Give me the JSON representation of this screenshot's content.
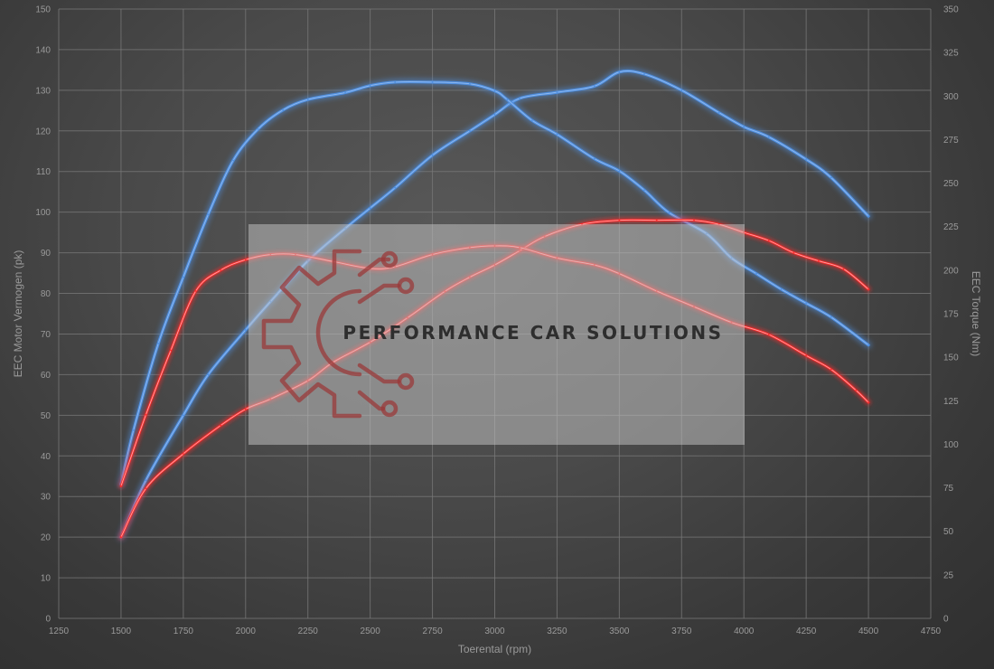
{
  "chart_data": {
    "type": "line",
    "xlabel": "Toerental (rpm)",
    "ylabel": "EEC Motor Vermogen (pk)",
    "y2label": "EEC Torque (Nm)",
    "xlim": [
      1250,
      4750
    ],
    "ylim": [
      0,
      150
    ],
    "y2lim": [
      0,
      350
    ],
    "x_ticks": [
      1250,
      1500,
      1750,
      2000,
      2250,
      2500,
      2750,
      3000,
      3250,
      3500,
      3750,
      4000,
      4250,
      4500,
      4750
    ],
    "y_ticks": [
      0,
      10,
      20,
      30,
      40,
      50,
      60,
      70,
      80,
      90,
      100,
      110,
      120,
      130,
      140,
      150
    ],
    "y2_ticks": [
      0,
      25,
      50,
      75,
      100,
      125,
      150,
      175,
      200,
      225,
      250,
      275,
      300,
      325,
      350
    ],
    "grid": true,
    "colors": {
      "tuned": "#4f8fe0",
      "stock": "#ff2a2a"
    },
    "series": [
      {
        "axis": "left",
        "color": "tuned",
        "x": [
          1500,
          1600,
          1750,
          1850,
          2000,
          2100,
          2250,
          2400,
          2500,
          2600,
          2750,
          2900,
          3000,
          3100,
          3250,
          3400,
          3500,
          3600,
          3750,
          3900,
          4000,
          4100,
          4250,
          4350,
          4500
        ],
        "y": [
          20,
          34,
          50,
          60,
          71,
          78,
          88,
          96,
          101,
          106,
          114,
          120,
          124,
          128,
          129.5,
          131,
          134.5,
          134,
          130,
          124.5,
          121,
          118.5,
          113,
          108.5,
          99
        ]
      },
      {
        "axis": "right",
        "color": "tuned",
        "x": [
          1500,
          1550,
          1650,
          1750,
          1850,
          1950,
          2050,
          2150,
          2250,
          2400,
          2500,
          2600,
          2750,
          2900,
          3000,
          3050,
          3150,
          3250,
          3400,
          3500,
          3600,
          3700,
          3850,
          3950,
          4050,
          4150,
          4250,
          4350,
          4500
        ],
        "y": [
          77,
          108,
          158,
          196,
          232,
          263,
          281,
          292,
          298,
          302,
          306,
          308,
          308,
          307,
          303,
          298,
          286,
          278,
          264,
          257,
          246,
          233,
          221,
          207,
          198,
          189,
          181,
          173,
          157
        ]
      },
      {
        "axis": "left",
        "color": "stock",
        "x": [
          1500,
          1600,
          1750,
          1900,
          2000,
          2100,
          2250,
          2350,
          2500,
          2650,
          2800,
          2900,
          3000,
          3100,
          3200,
          3350,
          3500,
          3650,
          3800,
          3900,
          4000,
          4100,
          4200,
          4300,
          4400,
          4500
        ],
        "y": [
          20,
          32,
          40.5,
          47.5,
          51.5,
          54,
          58.5,
          63,
          68,
          74,
          80.5,
          84,
          87,
          90.5,
          94,
          97,
          98,
          98,
          98,
          97,
          95,
          93,
          90,
          88,
          86,
          81
        ]
      },
      {
        "axis": "right",
        "color": "stock",
        "x": [
          1500,
          1600,
          1700,
          1800,
          1900,
          2000,
          2100,
          2200,
          2350,
          2500,
          2600,
          2750,
          2900,
          3000,
          3100,
          3250,
          3400,
          3500,
          3650,
          3800,
          3950,
          4100,
          4250,
          4350,
          4450,
          4500
        ],
        "y": [
          76,
          117,
          154,
          188,
          200,
          206,
          209,
          209,
          205,
          201,
          202,
          209,
          213,
          214,
          213,
          207,
          203,
          198,
          188,
          179,
          170,
          163,
          151,
          143,
          131,
          124
        ]
      }
    ]
  },
  "logo": {
    "text": "PERFORMANCE CAR SOLUTIONS"
  }
}
